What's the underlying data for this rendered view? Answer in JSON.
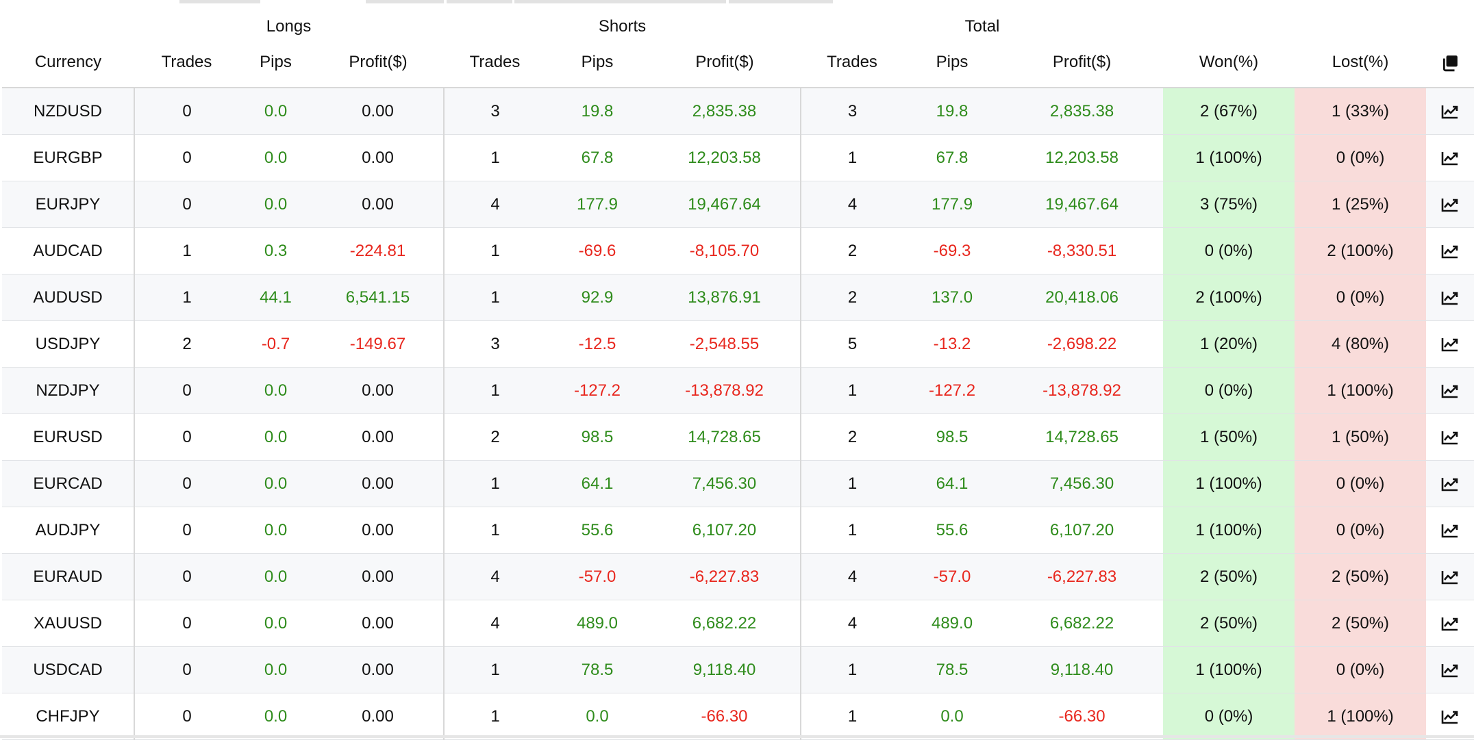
{
  "header": {
    "groups": {
      "longs": "Longs",
      "shorts": "Shorts",
      "total": "Total"
    },
    "columns": {
      "currency": "Currency",
      "long_trades": "Trades",
      "long_pips": "Pips",
      "long_profit": "Profit($)",
      "short_trades": "Trades",
      "short_pips": "Pips",
      "short_profit": "Profit($)",
      "total_trades": "Trades",
      "total_pips": "Pips",
      "total_profit": "Profit($)",
      "won": "Won(%)",
      "lost": "Lost(%)"
    },
    "copy_icon": "copy-icon"
  },
  "colors": {
    "positive": "#2f8c1c",
    "negative": "#e8271e",
    "won_bg": "#d6f8d6",
    "lost_bg": "#f9dcda"
  },
  "rows": [
    {
      "currency": "NZDUSD",
      "long_trades": "0",
      "long_pips": "0.0",
      "long_profit": "0.00",
      "short_trades": "3",
      "short_pips": "19.8",
      "short_profit": "2,835.38",
      "total_trades": "3",
      "total_pips": "19.8",
      "total_profit": "2,835.38",
      "won": "2 (67%)",
      "lost": "1 (33%)"
    },
    {
      "currency": "EURGBP",
      "long_trades": "0",
      "long_pips": "0.0",
      "long_profit": "0.00",
      "short_trades": "1",
      "short_pips": "67.8",
      "short_profit": "12,203.58",
      "total_trades": "1",
      "total_pips": "67.8",
      "total_profit": "12,203.58",
      "won": "1 (100%)",
      "lost": "0 (0%)"
    },
    {
      "currency": "EURJPY",
      "long_trades": "0",
      "long_pips": "0.0",
      "long_profit": "0.00",
      "short_trades": "4",
      "short_pips": "177.9",
      "short_profit": "19,467.64",
      "total_trades": "4",
      "total_pips": "177.9",
      "total_profit": "19,467.64",
      "won": "3 (75%)",
      "lost": "1 (25%)"
    },
    {
      "currency": "AUDCAD",
      "long_trades": "1",
      "long_pips": "0.3",
      "long_profit": "-224.81",
      "short_trades": "1",
      "short_pips": "-69.6",
      "short_profit": "-8,105.70",
      "total_trades": "2",
      "total_pips": "-69.3",
      "total_profit": "-8,330.51",
      "won": "0 (0%)",
      "lost": "2 (100%)"
    },
    {
      "currency": "AUDUSD",
      "long_trades": "1",
      "long_pips": "44.1",
      "long_profit": "6,541.15",
      "short_trades": "1",
      "short_pips": "92.9",
      "short_profit": "13,876.91",
      "total_trades": "2",
      "total_pips": "137.0",
      "total_profit": "20,418.06",
      "won": "2 (100%)",
      "lost": "0 (0%)"
    },
    {
      "currency": "USDJPY",
      "long_trades": "2",
      "long_pips": "-0.7",
      "long_profit": "-149.67",
      "short_trades": "3",
      "short_pips": "-12.5",
      "short_profit": "-2,548.55",
      "total_trades": "5",
      "total_pips": "-13.2",
      "total_profit": "-2,698.22",
      "won": "1 (20%)",
      "lost": "4 (80%)"
    },
    {
      "currency": "NZDJPY",
      "long_trades": "0",
      "long_pips": "0.0",
      "long_profit": "0.00",
      "short_trades": "1",
      "short_pips": "-127.2",
      "short_profit": "-13,878.92",
      "total_trades": "1",
      "total_pips": "-127.2",
      "total_profit": "-13,878.92",
      "won": "0 (0%)",
      "lost": "1 (100%)"
    },
    {
      "currency": "EURUSD",
      "long_trades": "0",
      "long_pips": "0.0",
      "long_profit": "0.00",
      "short_trades": "2",
      "short_pips": "98.5",
      "short_profit": "14,728.65",
      "total_trades": "2",
      "total_pips": "98.5",
      "total_profit": "14,728.65",
      "won": "1 (50%)",
      "lost": "1 (50%)"
    },
    {
      "currency": "EURCAD",
      "long_trades": "0",
      "long_pips": "0.0",
      "long_profit": "0.00",
      "short_trades": "1",
      "short_pips": "64.1",
      "short_profit": "7,456.30",
      "total_trades": "1",
      "total_pips": "64.1",
      "total_profit": "7,456.30",
      "won": "1 (100%)",
      "lost": "0 (0%)"
    },
    {
      "currency": "AUDJPY",
      "long_trades": "0",
      "long_pips": "0.0",
      "long_profit": "0.00",
      "short_trades": "1",
      "short_pips": "55.6",
      "short_profit": "6,107.20",
      "total_trades": "1",
      "total_pips": "55.6",
      "total_profit": "6,107.20",
      "won": "1 (100%)",
      "lost": "0 (0%)"
    },
    {
      "currency": "EURAUD",
      "long_trades": "0",
      "long_pips": "0.0",
      "long_profit": "0.00",
      "short_trades": "4",
      "short_pips": "-57.0",
      "short_profit": "-6,227.83",
      "total_trades": "4",
      "total_pips": "-57.0",
      "total_profit": "-6,227.83",
      "won": "2 (50%)",
      "lost": "2 (50%)"
    },
    {
      "currency": "XAUUSD",
      "long_trades": "0",
      "long_pips": "0.0",
      "long_profit": "0.00",
      "short_trades": "4",
      "short_pips": "489.0",
      "short_profit": "6,682.22",
      "total_trades": "4",
      "total_pips": "489.0",
      "total_profit": "6,682.22",
      "won": "2 (50%)",
      "lost": "2 (50%)"
    },
    {
      "currency": "USDCAD",
      "long_trades": "0",
      "long_pips": "0.0",
      "long_profit": "0.00",
      "short_trades": "1",
      "short_pips": "78.5",
      "short_profit": "9,118.40",
      "total_trades": "1",
      "total_pips": "78.5",
      "total_profit": "9,118.40",
      "won": "1 (100%)",
      "lost": "0 (0%)"
    },
    {
      "currency": "CHFJPY",
      "long_trades": "0",
      "long_pips": "0.0",
      "long_profit": "0.00",
      "short_trades": "1",
      "short_pips": "0.0",
      "short_profit": "-66.30",
      "total_trades": "1",
      "total_pips": "0.0",
      "total_profit": "-66.30",
      "won": "0 (0%)",
      "lost": "1 (100%)"
    }
  ],
  "row_icon": "chart-line-icon"
}
